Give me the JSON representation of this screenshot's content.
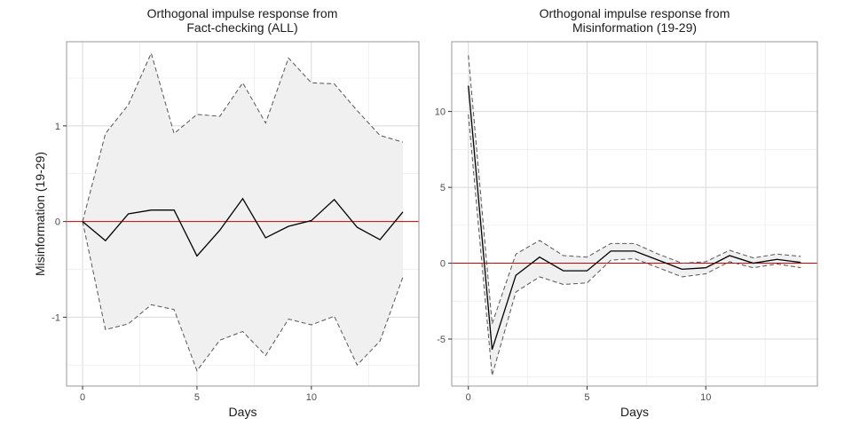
{
  "chart_data": [
    {
      "type": "line",
      "title_lines": [
        "Orthogonal impulse response from",
        "Fact-checking (ALL)"
      ],
      "xlabel": "Days",
      "ylabel": "Misinformation (19-29)",
      "xlim": [
        -0.7,
        14.7
      ],
      "ylim": [
        -1.72,
        1.88
      ],
      "x_ticks": [
        0,
        5,
        10
      ],
      "x_tick_labels": [
        "0",
        "5",
        "10"
      ],
      "y_ticks": [
        -1,
        0,
        1
      ],
      "y_tick_labels": [
        "-1",
        "0",
        "1"
      ],
      "grid": true,
      "reference_line": {
        "y": 0,
        "color": "#cc0000"
      },
      "band_color": "#f0f0f0",
      "x": [
        0,
        1,
        2,
        3,
        4,
        5,
        6,
        7,
        8,
        9,
        10,
        11,
        12,
        13,
        14
      ],
      "series": [
        {
          "role": "response",
          "values": [
            0.0,
            -0.2,
            0.08,
            0.12,
            0.12,
            -0.36,
            -0.09,
            0.24,
            -0.17,
            -0.05,
            0.01,
            0.23,
            -0.06,
            -0.19,
            0.1
          ],
          "color": "#000000",
          "style": "solid"
        },
        {
          "role": "upper",
          "values": [
            0.0,
            0.92,
            1.22,
            1.76,
            0.92,
            1.12,
            1.1,
            1.45,
            1.03,
            1.71,
            1.45,
            1.44,
            1.16,
            0.9,
            0.83
          ],
          "color": "#555555",
          "style": "dashed"
        },
        {
          "role": "lower",
          "values": [
            0.0,
            -1.13,
            -1.07,
            -0.87,
            -0.92,
            -1.56,
            -1.24,
            -1.15,
            -1.4,
            -1.02,
            -1.08,
            -0.99,
            -1.5,
            -1.25,
            -0.58
          ],
          "color": "#555555",
          "style": "dashed"
        }
      ]
    },
    {
      "type": "line",
      "title_lines": [
        "Orthogonal impulse response from",
        "Misinformation (19-29)"
      ],
      "xlabel": "Days",
      "ylabel": "",
      "xlim": [
        -0.7,
        14.7
      ],
      "ylim": [
        -8.1,
        14.6
      ],
      "x_ticks": [
        0,
        5,
        10
      ],
      "x_tick_labels": [
        "0",
        "5",
        "10"
      ],
      "y_ticks": [
        -5,
        0,
        5,
        10
      ],
      "y_tick_labels": [
        "-5",
        "0",
        "5",
        "10"
      ],
      "grid": true,
      "reference_line": {
        "y": 0,
        "color": "#cc0000"
      },
      "band_color": "#f0f0f0",
      "x": [
        0,
        1,
        2,
        3,
        4,
        5,
        6,
        7,
        8,
        9,
        10,
        11,
        12,
        13,
        14
      ],
      "series": [
        {
          "role": "response",
          "values": [
            11.7,
            -5.7,
            -0.8,
            0.4,
            -0.5,
            -0.5,
            0.8,
            0.8,
            0.2,
            -0.4,
            -0.3,
            0.5,
            0.0,
            0.25,
            0.05
          ],
          "color": "#000000",
          "style": "solid"
        },
        {
          "role": "upper",
          "values": [
            13.7,
            -4.0,
            0.6,
            1.5,
            0.5,
            0.4,
            1.3,
            1.3,
            0.6,
            0.0,
            0.1,
            0.85,
            0.35,
            0.6,
            0.45
          ],
          "color": "#555555",
          "style": "dashed"
        },
        {
          "role": "lower",
          "values": [
            9.8,
            -7.4,
            -1.9,
            -0.9,
            -1.4,
            -1.3,
            0.2,
            0.3,
            -0.3,
            -0.9,
            -0.7,
            0.1,
            -0.3,
            -0.05,
            -0.3
          ]
        }
      ]
    }
  ]
}
